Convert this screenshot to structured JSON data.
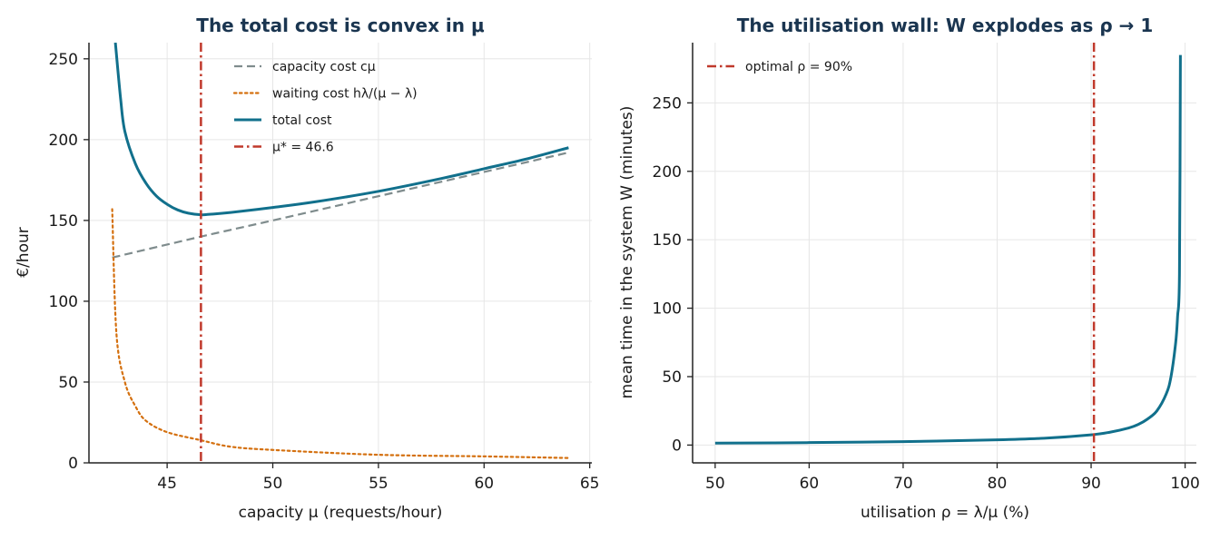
{
  "colors": {
    "capacity": "#7f8c8d",
    "waiting": "#d4700f",
    "total": "#11708c",
    "optimal": "#c0392b",
    "title": "#1a3550"
  },
  "chart_data": [
    {
      "type": "line",
      "title": "The total cost is convex in μ",
      "xlabel": "capacity μ (requests/hour)",
      "ylabel": "€/hour",
      "xlim": [
        41.3,
        65.1
      ],
      "ylim": [
        0,
        260
      ],
      "xticks": [
        "45",
        "50",
        "55",
        "60",
        "65"
      ],
      "yticks": [
        "0",
        "50",
        "100",
        "150",
        "200",
        "250"
      ],
      "grid": true,
      "legend_position": "top-center",
      "series": [
        {
          "name": "capacity cost cμ",
          "style": "dashed",
          "color_key": "capacity",
          "x": [
            42.4,
            46.6,
            50,
            55,
            60,
            64
          ],
          "y": [
            127,
            140,
            150,
            165,
            180,
            192
          ]
        },
        {
          "name": "waiting cost hλ/(μ − λ)",
          "style": "dotted",
          "color_key": "waiting",
          "x": [
            42.4,
            42.6,
            43,
            43.5,
            44,
            45,
            46.6,
            48,
            50,
            55,
            60,
            64
          ],
          "y": [
            157,
            80,
            50,
            35,
            26,
            19,
            14,
            10,
            8,
            5,
            4,
            3
          ]
        },
        {
          "name": "total cost",
          "style": "solid",
          "color_key": "total",
          "x": [
            42.55,
            42.8,
            43,
            43.5,
            44,
            44.5,
            45,
            45.5,
            46,
            46.6,
            47,
            48,
            50,
            52,
            55,
            58,
            60,
            62,
            64
          ],
          "y": [
            260,
            225,
            205,
            185,
            173,
            165,
            160,
            156.5,
            154.5,
            153.5,
            153.8,
            154.9,
            158,
            161.5,
            168,
            176,
            182,
            188,
            195
          ]
        },
        {
          "name": "μ* = 46.6",
          "style": "dashdot",
          "color_key": "optimal",
          "vline": 46.6
        }
      ]
    },
    {
      "type": "line",
      "title": "The utilisation wall: W explodes as ρ → 1",
      "xlabel": "utilisation ρ = λ/μ (%)",
      "ylabel": "mean time in the system W (minutes)",
      "xlim": [
        47.6,
        101.2
      ],
      "ylim": [
        -13,
        294
      ],
      "xticks": [
        "50",
        "60",
        "70",
        "80",
        "90",
        "100"
      ],
      "yticks": [
        "0",
        "50",
        "100",
        "150",
        "200",
        "250"
      ],
      "grid": true,
      "legend_position": "top-left",
      "series": [
        {
          "name": "mean time in the system W",
          "style": "solid",
          "color_key": "total",
          "x": [
            50,
            60,
            70,
            80,
            85,
            90,
            92,
            94,
            95,
            96,
            97,
            98,
            98.5,
            99,
            99.2,
            99.4,
            99.5
          ],
          "y": [
            1.4,
            1.8,
            2.5,
            3.8,
            5,
            7.5,
            9.4,
            12.5,
            15,
            19,
            25,
            37.5,
            50,
            75,
            94,
            125,
            285
          ]
        },
        {
          "name": "optimal ρ = 90%",
          "style": "dashdot",
          "color_key": "optimal",
          "vline": 90.3
        }
      ]
    }
  ]
}
